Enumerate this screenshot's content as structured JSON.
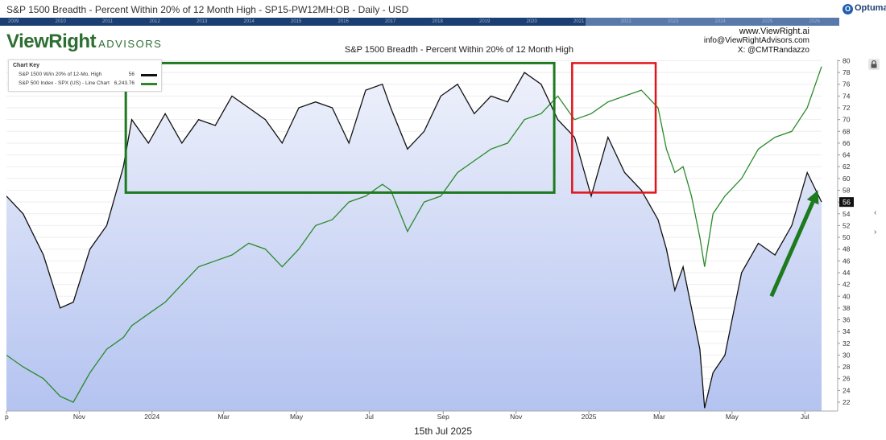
{
  "header": {
    "title": "S&P 1500 Breadth - Percent Within 20% of 12 Month High - SP15-PW12MH:OB - Daily - USD",
    "brand": "Optuma",
    "navigator_years": [
      "2009",
      "2010",
      "2011",
      "2012",
      "2013",
      "2014",
      "2015",
      "2016",
      "2017",
      "2018",
      "2019",
      "2020",
      "2021",
      "2022",
      "2023",
      "2024",
      "2025",
      "2026"
    ]
  },
  "logo": {
    "main": "ViewRight",
    "sub": "ADVISORS"
  },
  "contact": {
    "website": "www.ViewRight.ai",
    "email": "info@ViewRightAdvisors.com",
    "social": "X: @CMTRandazzo"
  },
  "chart_key": {
    "title": "Chart Key",
    "rows": [
      {
        "label": "S&P 1500 W/in 20% of 12-Mo. High",
        "value": "56",
        "color": "#111111"
      },
      {
        "label": "S&P 500 Index - SPX (US) - Line Chart",
        "value": "6,243.76",
        "color": "#2a8a2a"
      }
    ]
  },
  "footer": {
    "date": "15th Jul 2025"
  },
  "chart_data": {
    "type": "line",
    "title": "S&P 1500 Breadth - Percent Within 20% of 12 Month High",
    "x_tick_labels": [
      "p",
      "Nov",
      "2024",
      "Mar",
      "May",
      "Jul",
      "Sep",
      "Nov",
      "2025",
      "Mar",
      "May",
      "Jul"
    ],
    "y_tick_labels": [
      "22",
      "24",
      "26",
      "28",
      "30",
      "32",
      "34",
      "36",
      "38",
      "40",
      "42",
      "44",
      "46",
      "48",
      "50",
      "52",
      "54",
      "56",
      "58",
      "60",
      "62",
      "64",
      "66",
      "68",
      "70",
      "72",
      "74",
      "76",
      "78",
      "80"
    ],
    "ylim": [
      20.5,
      80.2
    ],
    "last_value_label": "56",
    "colors": {
      "breadth": "#111111",
      "spx": "#2a8a2a",
      "fill_top": "#eef1fb",
      "fill_bottom": "#b4c3f0",
      "green_box": "#1e7a1e",
      "red_box": "#e0141b",
      "arrow": "#1e7a1e"
    },
    "series": [
      {
        "name": "S&P 1500 W/in 20% of 12-Mo. High",
        "x": [
          "2023-09-01",
          "2023-09-15",
          "2023-10-02",
          "2023-10-16",
          "2023-10-27",
          "2023-11-10",
          "2023-11-24",
          "2023-12-08",
          "2023-12-15",
          "2023-12-29",
          "2024-01-12",
          "2024-01-26",
          "2024-02-09",
          "2024-02-23",
          "2024-03-08",
          "2024-03-22",
          "2024-04-05",
          "2024-04-19",
          "2024-05-03",
          "2024-05-17",
          "2024-05-31",
          "2024-06-14",
          "2024-06-28",
          "2024-07-12",
          "2024-07-19",
          "2024-08-02",
          "2024-08-16",
          "2024-08-30",
          "2024-09-13",
          "2024-09-27",
          "2024-10-11",
          "2024-10-25",
          "2024-11-08",
          "2024-11-22",
          "2024-12-06",
          "2024-12-20",
          "2025-01-03",
          "2025-01-17",
          "2025-01-31",
          "2025-02-14",
          "2025-02-28",
          "2025-03-07",
          "2025-03-14",
          "2025-03-21",
          "2025-03-28",
          "2025-04-04",
          "2025-04-08",
          "2025-04-15",
          "2025-04-25",
          "2025-05-09",
          "2025-05-23",
          "2025-06-06",
          "2025-06-20",
          "2025-07-03",
          "2025-07-15"
        ],
        "y": [
          57,
          54,
          47,
          38,
          39,
          48,
          52,
          62,
          70,
          66,
          71,
          66,
          70,
          69,
          74,
          72,
          70,
          66,
          72,
          73,
          72,
          66,
          75,
          76,
          72,
          65,
          68,
          74,
          76,
          71,
          74,
          73,
          78,
          76,
          70,
          67,
          57,
          67,
          61,
          58,
          53,
          48,
          41,
          45,
          38,
          31,
          21,
          27,
          30,
          44,
          49,
          47,
          52,
          61,
          56
        ]
      },
      {
        "name": "S&P 500 Index - SPX (US) - Line Chart",
        "x": [
          "2023-09-01",
          "2023-09-15",
          "2023-10-02",
          "2023-10-16",
          "2023-10-27",
          "2023-11-10",
          "2023-11-24",
          "2023-12-08",
          "2023-12-15",
          "2023-12-29",
          "2024-01-12",
          "2024-01-26",
          "2024-02-09",
          "2024-02-23",
          "2024-03-08",
          "2024-03-22",
          "2024-04-05",
          "2024-04-19",
          "2024-05-03",
          "2024-05-17",
          "2024-05-31",
          "2024-06-14",
          "2024-06-28",
          "2024-07-12",
          "2024-07-19",
          "2024-08-02",
          "2024-08-16",
          "2024-08-30",
          "2024-09-13",
          "2024-09-27",
          "2024-10-11",
          "2024-10-25",
          "2024-11-08",
          "2024-11-22",
          "2024-12-06",
          "2024-12-20",
          "2025-01-03",
          "2025-01-17",
          "2025-01-31",
          "2025-02-14",
          "2025-02-28",
          "2025-03-07",
          "2025-03-14",
          "2025-03-21",
          "2025-03-28",
          "2025-04-04",
          "2025-04-08",
          "2025-04-15",
          "2025-04-25",
          "2025-05-09",
          "2025-05-23",
          "2025-06-06",
          "2025-06-20",
          "2025-07-03",
          "2025-07-15"
        ],
        "y": [
          30,
          28,
          26,
          23,
          22,
          27,
          31,
          33,
          35,
          37,
          39,
          42,
          45,
          46,
          47,
          49,
          48,
          45,
          48,
          52,
          53,
          56,
          57,
          59,
          58,
          51,
          56,
          57,
          61,
          63,
          65,
          66,
          70,
          71,
          74,
          70,
          71,
          73,
          74,
          75,
          72,
          65,
          61,
          62,
          57,
          50,
          45,
          54,
          57,
          60,
          65,
          67,
          68,
          72,
          79
        ]
      }
    ],
    "annotations": {
      "green_box": {
        "x_start": "2023-12-10",
        "x_end": "2024-12-03",
        "y_low": 57.6,
        "y_high": 79.6
      },
      "red_box": {
        "x_start": "2024-12-18",
        "x_end": "2025-02-26",
        "y_low": 57.6,
        "y_high": 79.6
      },
      "arrow": {
        "x_start": "2025-06-03",
        "x_end": "2025-07-12",
        "y_start": 40,
        "y_end": 58
      }
    }
  }
}
